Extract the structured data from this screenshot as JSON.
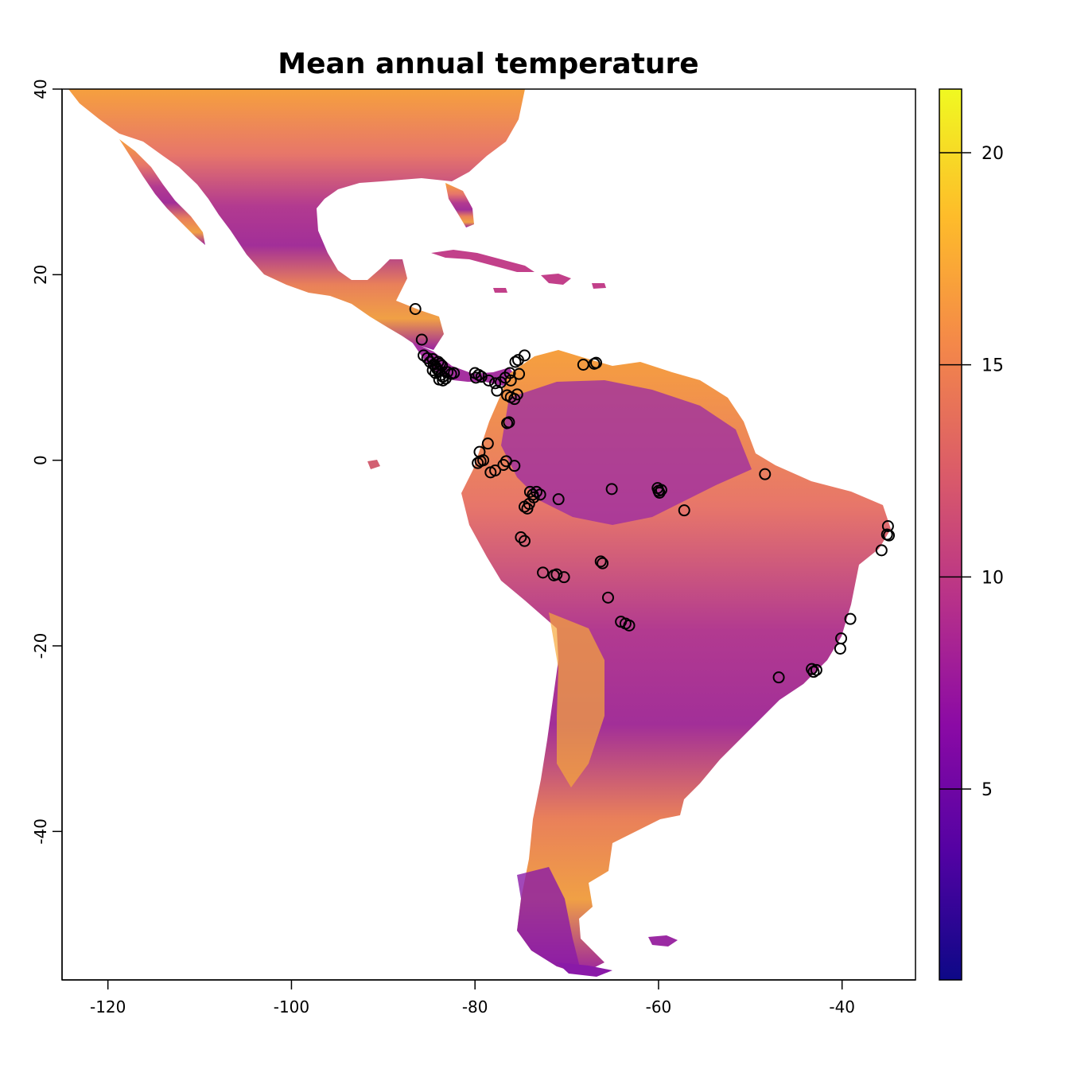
{
  "title": "Mean annual temperature",
  "chart_data": {
    "type": "map",
    "title": "Mean annual temperature",
    "xlim": [
      -125,
      -32
    ],
    "ylim": [
      -56,
      40
    ],
    "x_ticks": [
      {
        "value": -120,
        "label": "-120"
      },
      {
        "value": -100,
        "label": "-100"
      },
      {
        "value": -80,
        "label": "-80"
      },
      {
        "value": -60,
        "label": "-60"
      },
      {
        "value": -40,
        "label": "-40"
      }
    ],
    "y_ticks": [
      {
        "value": 40,
        "label": "40"
      },
      {
        "value": 20,
        "label": "20"
      },
      {
        "value": 0,
        "label": "0"
      },
      {
        "value": -20,
        "label": "-20"
      },
      {
        "value": -40,
        "label": "-40"
      }
    ],
    "legend": {
      "type": "colorbar",
      "range": [
        0.5,
        21.5
      ],
      "palette": [
        "#0d0887",
        "#5302a3",
        "#8b0aa5",
        "#b83289",
        "#db5c68",
        "#f48849",
        "#febc2a",
        "#f0f921"
      ],
      "ticks": [
        {
          "value": 20,
          "label": "20"
        },
        {
          "value": 15,
          "label": "15"
        },
        {
          "value": 10,
          "label": "10"
        },
        {
          "value": 5,
          "label": "5"
        }
      ]
    },
    "occurrence_points": [
      [
        -86.5,
        16.3
      ],
      [
        -85.8,
        13.0
      ],
      [
        -85.6,
        11.3
      ],
      [
        -85.2,
        11.0
      ],
      [
        -84.9,
        10.6
      ],
      [
        -84.6,
        10.9
      ],
      [
        -84.5,
        10.3
      ],
      [
        -84.3,
        10.1
      ],
      [
        -84.1,
        9.8
      ],
      [
        -84.0,
        10.6
      ],
      [
        -83.8,
        10.4
      ],
      [
        -83.6,
        10.2
      ],
      [
        -83.9,
        9.6
      ],
      [
        -84.6,
        9.7
      ],
      [
        -84.3,
        9.4
      ],
      [
        -83.7,
        9.2
      ],
      [
        -83.5,
        9.0
      ],
      [
        -83.9,
        8.7
      ],
      [
        -83.5,
        8.6
      ],
      [
        -83.2,
        8.8
      ],
      [
        -83.0,
        9.5
      ],
      [
        -82.6,
        9.3
      ],
      [
        -82.3,
        9.4
      ],
      [
        -80.0,
        9.4
      ],
      [
        -79.6,
        9.2
      ],
      [
        -79.3,
        9.0
      ],
      [
        -79.9,
        8.9
      ],
      [
        -78.5,
        8.6
      ],
      [
        -77.8,
        8.3
      ],
      [
        -77.6,
        7.5
      ],
      [
        -77.2,
        8.4
      ],
      [
        -76.7,
        8.9
      ],
      [
        -76.2,
        9.4
      ],
      [
        -75.6,
        10.6
      ],
      [
        -75.3,
        10.8
      ],
      [
        -74.6,
        11.3
      ],
      [
        -75.2,
        9.3
      ],
      [
        -76.1,
        8.6
      ],
      [
        -76.5,
        7.0
      ],
      [
        -76.1,
        6.8
      ],
      [
        -75.7,
        6.6
      ],
      [
        -75.4,
        7.1
      ],
      [
        -76.5,
        4.0
      ],
      [
        -76.3,
        4.1
      ],
      [
        -78.6,
        1.8
      ],
      [
        -79.5,
        0.9
      ],
      [
        -79.4,
        -0.1
      ],
      [
        -79.1,
        0.0
      ],
      [
        -79.7,
        -0.3
      ],
      [
        -76.6,
        -0.1
      ],
      [
        -76.9,
        -0.5
      ],
      [
        -75.7,
        -0.6
      ],
      [
        -78.3,
        -1.3
      ],
      [
        -77.8,
        -1.1
      ],
      [
        -74.0,
        -3.4
      ],
      [
        -73.7,
        -3.7
      ],
      [
        -73.3,
        -3.4
      ],
      [
        -73.6,
        -4.0
      ],
      [
        -72.9,
        -3.7
      ],
      [
        -74.1,
        -4.7
      ],
      [
        -74.6,
        -5.0
      ],
      [
        -74.3,
        -5.2
      ],
      [
        -70.9,
        -4.2
      ],
      [
        -75.0,
        -8.3
      ],
      [
        -74.6,
        -8.7
      ],
      [
        -72.6,
        -12.1
      ],
      [
        -71.4,
        -12.4
      ],
      [
        -71.1,
        -12.3
      ],
      [
        -70.3,
        -12.6
      ],
      [
        -66.3,
        -10.9
      ],
      [
        -66.1,
        -11.1
      ],
      [
        -65.5,
        -14.8
      ],
      [
        -64.1,
        -17.4
      ],
      [
        -63.6,
        -17.6
      ],
      [
        -63.2,
        -17.8
      ],
      [
        -65.1,
        -3.1
      ],
      [
        -60.1,
        -3.0
      ],
      [
        -60.0,
        -3.3
      ],
      [
        -59.7,
        -3.2
      ],
      [
        -59.9,
        -3.5
      ],
      [
        -57.2,
        -5.4
      ],
      [
        -68.2,
        10.3
      ],
      [
        -67.0,
        10.4
      ],
      [
        -66.8,
        10.5
      ],
      [
        -48.4,
        -1.5
      ],
      [
        -35.0,
        -7.1
      ],
      [
        -35.1,
        -8.0
      ],
      [
        -34.9,
        -8.1
      ],
      [
        -35.7,
        -9.7
      ],
      [
        -39.1,
        -17.1
      ],
      [
        -40.1,
        -19.2
      ],
      [
        -40.2,
        -20.3
      ],
      [
        -43.1,
        -22.8
      ],
      [
        -42.8,
        -22.6
      ],
      [
        -43.3,
        -22.5
      ],
      [
        -46.9,
        -23.4
      ]
    ]
  }
}
